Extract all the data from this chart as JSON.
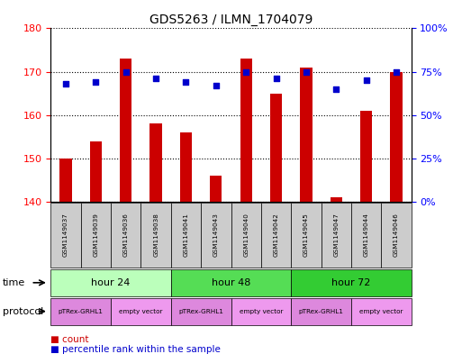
{
  "title": "GDS5263 / ILMN_1704079",
  "samples": [
    "GSM1149037",
    "GSM1149039",
    "GSM1149036",
    "GSM1149038",
    "GSM1149041",
    "GSM1149043",
    "GSM1149040",
    "GSM1149042",
    "GSM1149045",
    "GSM1149047",
    "GSM1149044",
    "GSM1149046"
  ],
  "counts": [
    150,
    154,
    173,
    158,
    156,
    146,
    173,
    165,
    171,
    141,
    161,
    170
  ],
  "percentiles": [
    68,
    69,
    75,
    71,
    69,
    67,
    75,
    71,
    75,
    65,
    70,
    75
  ],
  "ymin": 140,
  "ymax": 180,
  "yticks": [
    140,
    150,
    160,
    170,
    180
  ],
  "y2min": 0,
  "y2max": 100,
  "y2ticks": [
    0,
    25,
    50,
    75,
    100
  ],
  "bar_color": "#cc0000",
  "dot_color": "#0000cc",
  "bar_width": 0.4,
  "time_groups": [
    {
      "label": "hour 24",
      "start": 0,
      "end": 4,
      "color": "#bbffbb"
    },
    {
      "label": "hour 48",
      "start": 4,
      "end": 8,
      "color": "#55dd55"
    },
    {
      "label": "hour 72",
      "start": 8,
      "end": 12,
      "color": "#33cc33"
    }
  ],
  "protocol_groups": [
    {
      "label": "pTRex-GRHL1",
      "start": 0,
      "end": 2,
      "color": "#dd88dd"
    },
    {
      "label": "empty vector",
      "start": 2,
      "end": 4,
      "color": "#ee99ee"
    },
    {
      "label": "pTRex-GRHL1",
      "start": 4,
      "end": 6,
      "color": "#dd88dd"
    },
    {
      "label": "empty vector",
      "start": 6,
      "end": 8,
      "color": "#ee99ee"
    },
    {
      "label": "pTRex-GRHL1",
      "start": 8,
      "end": 10,
      "color": "#dd88dd"
    },
    {
      "label": "empty vector",
      "start": 10,
      "end": 12,
      "color": "#ee99ee"
    }
  ],
  "legend_count_color": "#cc0000",
  "legend_dot_color": "#0000cc",
  "sample_box_color": "#cccccc"
}
